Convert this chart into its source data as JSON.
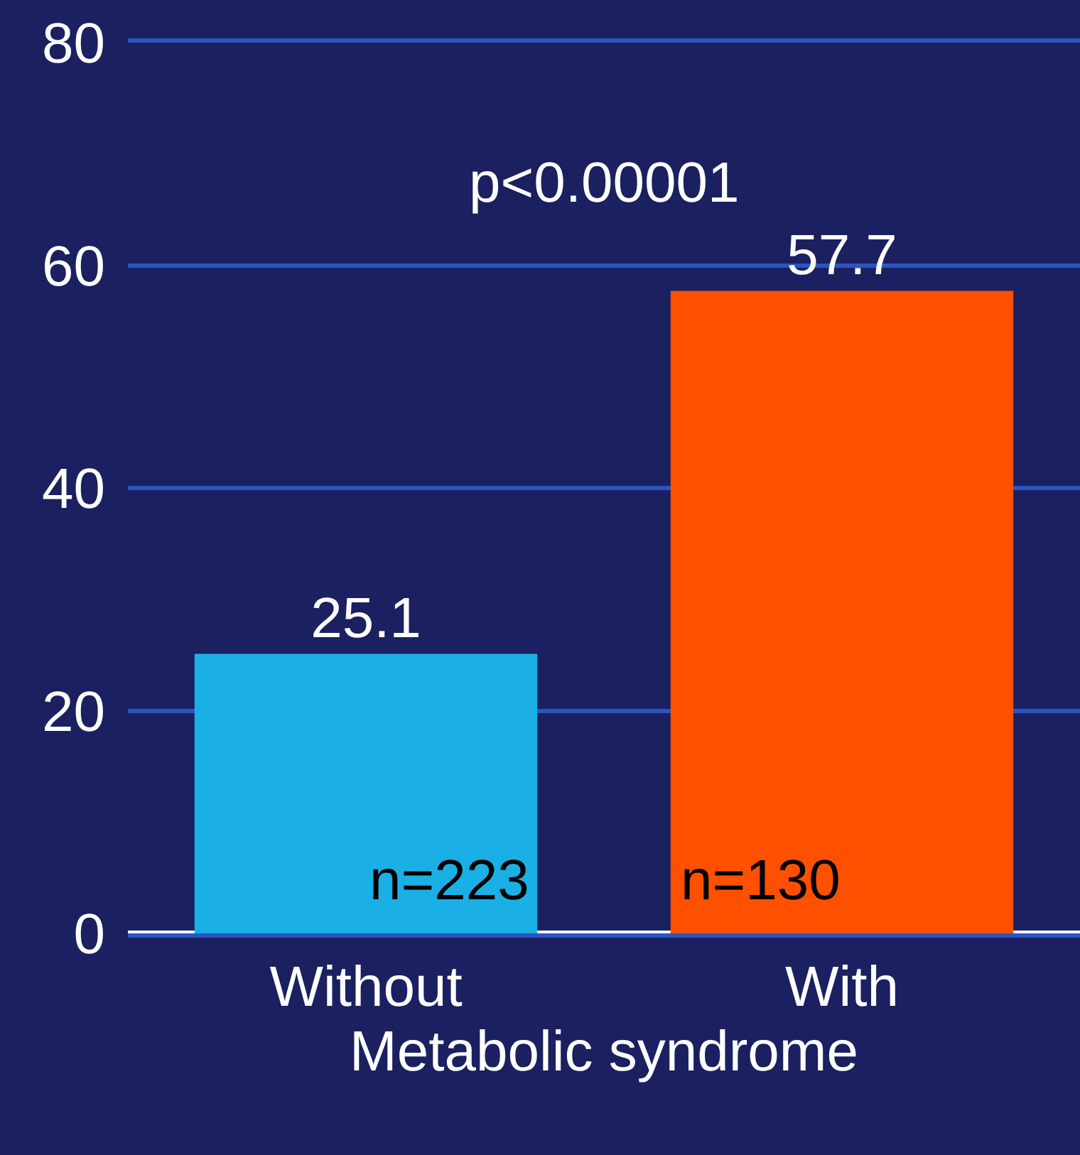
{
  "chart_data": {
    "type": "bar",
    "categories": [
      "Without",
      "With"
    ],
    "values": [
      25.1,
      57.7
    ],
    "colors": [
      "#1ab0e6",
      "#ff5000"
    ],
    "ylim": [
      0,
      80
    ],
    "yticks": [
      0,
      20,
      40,
      60,
      80
    ],
    "grid": "y",
    "data_labels": true,
    "xlabel": "Metabolic syndrome",
    "annotations": [
      "p<0.00001",
      "n=223",
      "n=130"
    ]
  }
}
